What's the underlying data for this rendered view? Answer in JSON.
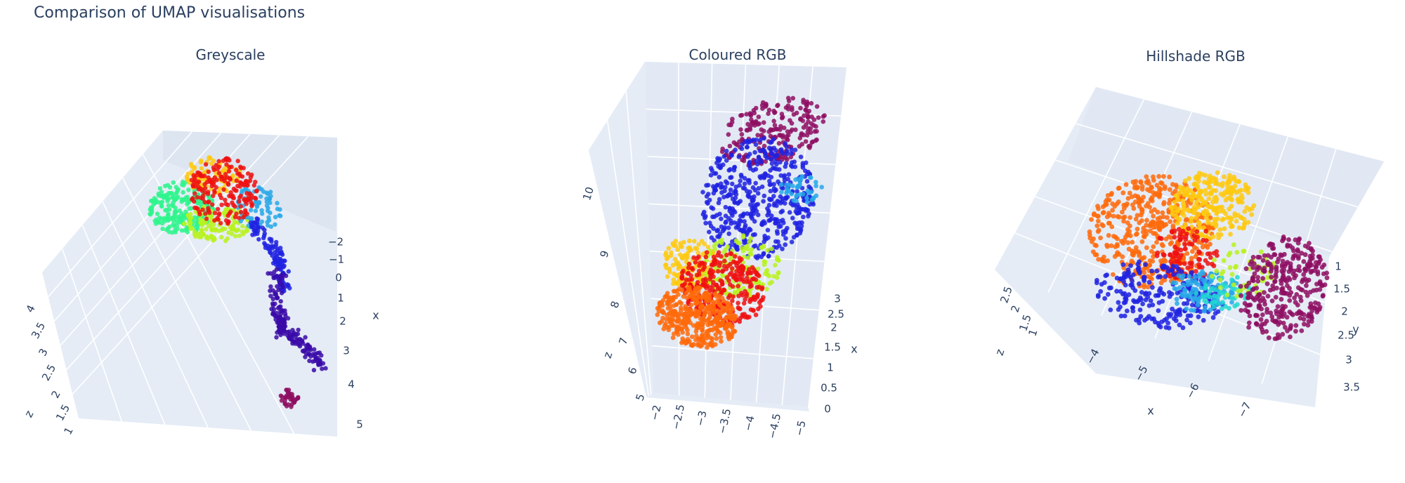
{
  "figure": {
    "title": "Comparison of UMAP visualisations"
  },
  "colors": {
    "background": "#ffffff",
    "scene_bg": "#e5ecf6",
    "grid": "#ffffff",
    "text": "#2a3f5f",
    "palette": {
      "purple": "#8e0e62",
      "indigo": "#3a0aa8",
      "blue": "#1e22e0",
      "sky": "#27a8e8",
      "cyan": "#1fd8d0",
      "green": "#2ef58c",
      "lime": "#b8f21e",
      "yellow": "#ffc90f",
      "orange": "#ff6a0a",
      "red": "#ee1111"
    }
  },
  "chart_data": [
    {
      "type": "scatter3d",
      "title": "Greyscale",
      "axes": {
        "x": {
          "label": "x",
          "ticks": [
            "−2",
            "−1",
            "0",
            "1",
            "2",
            "3",
            "4",
            "5"
          ]
        },
        "z": {
          "label": "z",
          "ticks": [
            "1",
            "1.5",
            "2",
            "2.5",
            "3",
            "3.5",
            "4"
          ]
        }
      },
      "clusters": [
        {
          "color": "green",
          "count": 230
        },
        {
          "color": "lime",
          "count": 120
        },
        {
          "color": "yellow",
          "count": 90
        },
        {
          "color": "red",
          "count": 190
        },
        {
          "color": "sky",
          "count": 70
        },
        {
          "color": "blue",
          "count": 110
        },
        {
          "color": "indigo",
          "count": 170
        },
        {
          "color": "purple",
          "count": 35
        }
      ]
    },
    {
      "type": "scatter3d",
      "title": "Coloured RGB",
      "axes": {
        "x": {
          "label": "x",
          "ticks": [
            "0",
            "0.5",
            "1",
            "1.5",
            "2",
            "2.5",
            "3"
          ]
        },
        "y": {
          "label": "",
          "ticks": [
            "−2",
            "−2.5",
            "−3",
            "−3.5",
            "−4",
            "−4.5",
            "−5"
          ]
        },
        "z": {
          "label": "z",
          "ticks": [
            "5",
            "6",
            "7",
            "8",
            "9",
            "10"
          ]
        }
      },
      "clusters": [
        {
          "color": "purple",
          "count": 220
        },
        {
          "color": "blue",
          "count": 480
        },
        {
          "color": "sky",
          "count": 40
        },
        {
          "color": "yellow",
          "count": 140
        },
        {
          "color": "lime",
          "count": 140
        },
        {
          "color": "red",
          "count": 300
        },
        {
          "color": "orange",
          "count": 380
        }
      ]
    },
    {
      "type": "scatter3d",
      "title": "Hillshade RGB",
      "axes": {
        "x": {
          "label": "x",
          "ticks": [
            "−4",
            "−5",
            "−6",
            "−7"
          ]
        },
        "y": {
          "label": "y",
          "ticks": [
            "1",
            "1.5",
            "2",
            "2.5",
            "3",
            "3.5"
          ]
        },
        "z": {
          "label": "z",
          "ticks": [
            "1",
            "1.5",
            "2",
            "2.5"
          ]
        }
      },
      "clusters": [
        {
          "color": "orange",
          "count": 460
        },
        {
          "color": "yellow",
          "count": 260
        },
        {
          "color": "red",
          "count": 90
        },
        {
          "color": "blue",
          "count": 230
        },
        {
          "color": "sky",
          "count": 90
        },
        {
          "color": "cyan",
          "count": 50
        },
        {
          "color": "lime",
          "count": 50
        },
        {
          "color": "purple",
          "count": 330
        }
      ]
    }
  ]
}
